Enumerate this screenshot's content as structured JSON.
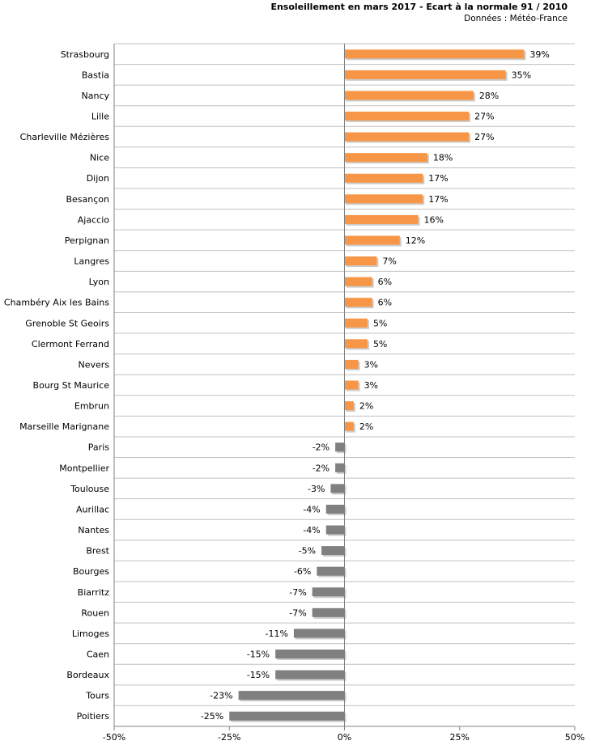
{
  "chart_data": {
    "type": "bar",
    "orientation": "horizontal",
    "title": "Ensoleillement en mars 2017 - Ecart à la normale 91 / 2010",
    "subtitle": "Données : Météo-France",
    "categories": [
      "Strasbourg",
      "Bastia",
      "Nancy",
      "Lille",
      "Charleville Mézières",
      "Nice",
      "Dijon",
      "Besançon",
      "Ajaccio",
      "Perpignan",
      "Langres",
      "Lyon",
      "Chambéry Aix les Bains",
      "Grenoble St Geoirs",
      "Clermont Ferrand",
      "Nevers",
      "Bourg St Maurice",
      "Embrun",
      "Marseille Marignane",
      "Paris",
      "Montpellier",
      "Toulouse",
      "Aurillac",
      "Nantes",
      "Brest",
      "Bourges",
      "Biarritz",
      "Rouen",
      "Limoges",
      "Caen",
      "Bordeaux",
      "Tours",
      "Poitiers"
    ],
    "values": [
      39,
      35,
      28,
      27,
      27,
      18,
      17,
      17,
      16,
      12,
      7,
      6,
      6,
      5,
      5,
      3,
      3,
      2,
      2,
      -2,
      -2,
      -3,
      -4,
      -4,
      -5,
      -6,
      -7,
      -7,
      -11,
      -15,
      -15,
      -23,
      -25
    ],
    "value_labels": [
      "39%",
      "35%",
      "28%",
      "27%",
      "27%",
      "18%",
      "17%",
      "17%",
      "16%",
      "12%",
      "7%",
      "6%",
      "6%",
      "5%",
      "5%",
      "3%",
      "3%",
      "2%",
      "2%",
      "-2%",
      "-2%",
      "-3%",
      "-4%",
      "-4%",
      "-5%",
      "-6%",
      "-7%",
      "-7%",
      "-11%",
      "-15%",
      "-15%",
      "-23%",
      "-25%"
    ],
    "xlim": [
      -50,
      50
    ],
    "xticks": [
      -50,
      -25,
      0,
      25,
      50
    ],
    "xtick_labels": [
      "-50%",
      "-25%",
      "0%",
      "25%",
      "50%"
    ],
    "grid": "horizontal",
    "legend": "none",
    "colors": {
      "positive": "#f79646",
      "negative": "#808080",
      "shadow": "#cccccc",
      "grid": "#c0c0c0",
      "axis": "#808080"
    }
  }
}
